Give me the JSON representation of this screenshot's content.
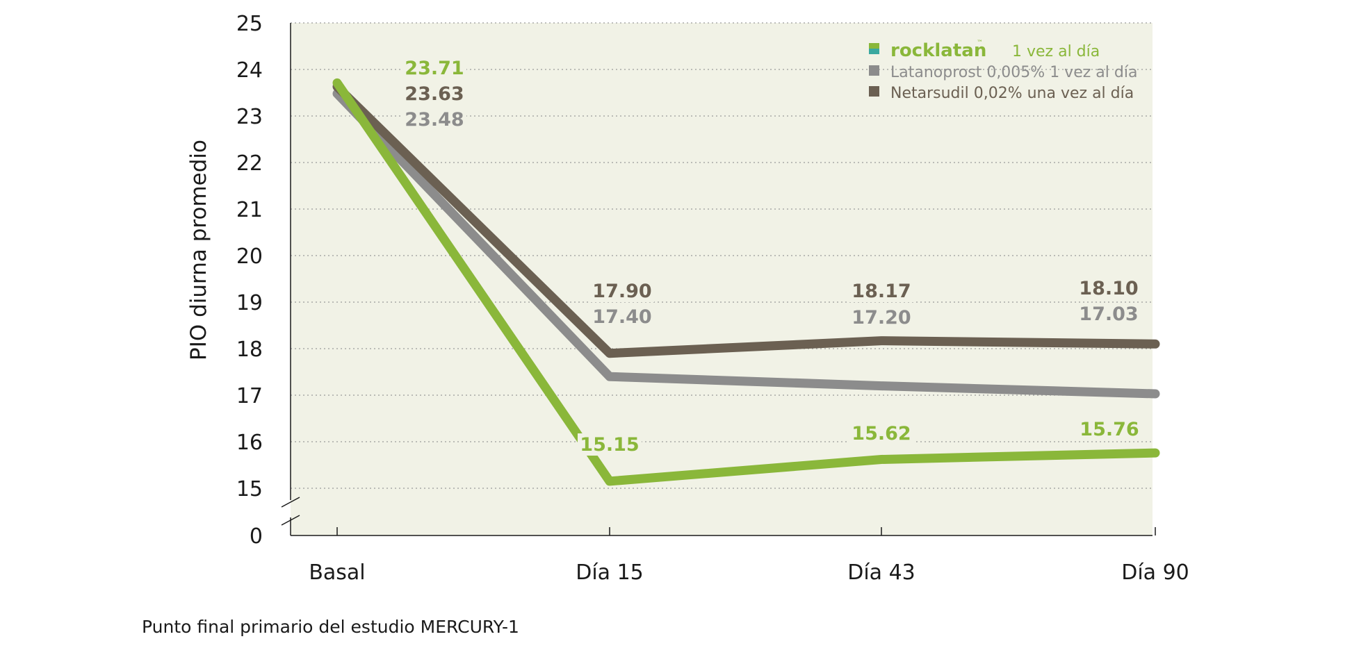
{
  "chart_data": {
    "type": "line",
    "ylabel": "PIO diurna promedio",
    "categories": [
      "Basal",
      "Día 15",
      "Día 43",
      "Día 90"
    ],
    "yticks": [
      "25",
      "24",
      "23",
      "22",
      "21",
      "20",
      "19",
      "18",
      "17",
      "16",
      "15",
      "0"
    ],
    "ylim": [
      15,
      25
    ],
    "axis_break": true,
    "grid": "horizontal dotted",
    "legend_position": "top-right",
    "series": [
      {
        "name": "rocklatan",
        "name_suffix": "1 vez al día",
        "color": "#8ab73a",
        "values": [
          23.71,
          15.15,
          15.62,
          15.76
        ],
        "labels": [
          "23.71",
          "15.15",
          "15.62",
          "15.76"
        ]
      },
      {
        "name": "Latanoprost 0,005% 1 vez al día",
        "color": "#8c8c8c",
        "values": [
          23.48,
          17.4,
          17.2,
          17.03
        ],
        "labels": [
          "23.48",
          "17.40",
          "17.20",
          "17.03"
        ]
      },
      {
        "name": "Netarsudil 0,02% una vez al día",
        "color": "#6b6052",
        "values": [
          23.63,
          17.9,
          18.17,
          18.1
        ],
        "labels": [
          "23.63",
          "17.90",
          "18.17",
          "18.10"
        ]
      }
    ]
  },
  "footnote": "Punto final primario del estudio MERCURY-1"
}
